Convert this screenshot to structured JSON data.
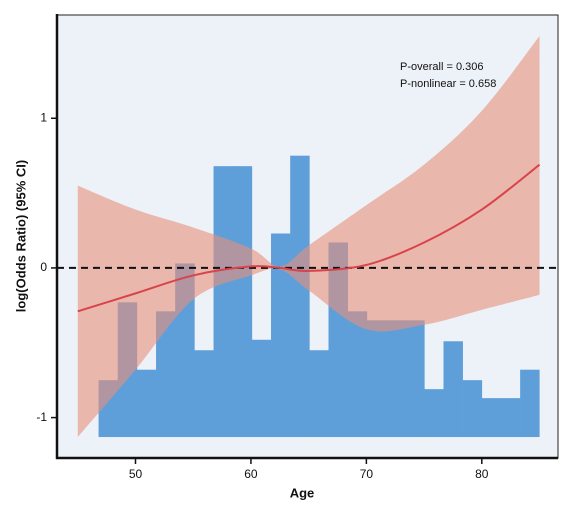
{
  "chart_data": {
    "type": "line",
    "xlabel": "Age",
    "ylabel": "log(Odds Ratio) (95% CI)",
    "xlim": [
      43.2,
      86.6
    ],
    "ylim": [
      -1.27,
      1.69
    ],
    "xticks": [
      50,
      60,
      70,
      80
    ],
    "yticks": [
      -1,
      0,
      1
    ],
    "background": "#edf2f9",
    "reference_line": 0,
    "annotations": [
      "P-overall = 0.306",
      "P-nonlinear = 0.658"
    ],
    "histogram": {
      "type": "histogram",
      "color": "#5f9fd9",
      "base": -1.13,
      "bins": [
        46.8,
        48.46,
        50.12,
        51.78,
        53.44,
        55.1,
        56.76,
        58.42,
        60.08,
        61.74,
        63.4,
        65.06,
        66.72,
        68.38,
        70.04,
        71.7,
        73.36,
        75.02,
        76.68,
        78.34,
        80.0,
        81.66,
        83.32,
        84.98
      ],
      "values": [
        -0.75,
        -0.23,
        -0.68,
        -0.29,
        0.03,
        -0.55,
        0.68,
        0.68,
        -0.48,
        0.23,
        0.75,
        -0.55,
        0.17,
        -0.29,
        -0.35,
        -0.35,
        -0.35,
        -0.81,
        -0.49,
        -0.75,
        -0.87,
        -0.87,
        -0.68
      ]
    },
    "x": [
      45,
      50,
      55,
      60,
      62.5,
      65,
      70,
      75,
      80,
      85
    ],
    "values": [
      -0.29,
      -0.17,
      -0.05,
      0.01,
      0.0,
      -0.02,
      0.02,
      0.17,
      0.39,
      0.69
    ],
    "lower": [
      -1.13,
      -0.68,
      -0.21,
      -0.05,
      -0.01,
      -0.15,
      -0.41,
      -0.38,
      -0.28,
      -0.18
    ],
    "upper": [
      0.55,
      0.39,
      0.27,
      0.13,
      0.01,
      0.15,
      0.42,
      0.69,
      1.05,
      1.55
    ],
    "color": "#d9434b",
    "band_color": "#e8907a"
  }
}
